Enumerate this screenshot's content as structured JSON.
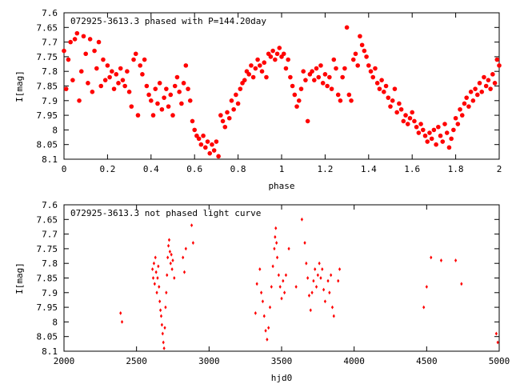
{
  "chart_data": [
    {
      "type": "scatter",
      "title": "072925-3613.3 phased with P=144.20day",
      "xlabel": "phase",
      "ylabel": "I[mag]",
      "xlim": [
        0,
        2
      ],
      "ylim": [
        7.6,
        8.1
      ],
      "y_inverted": true,
      "grid": false,
      "marker": "filled-circle-star",
      "color": "#ff0000",
      "xticks": [
        "0",
        "0.2",
        "0.4",
        "0.6",
        "0.8",
        "1",
        "1.2",
        "1.4",
        "1.6",
        "1.8",
        "2"
      ],
      "yticks": [
        "7.6",
        "7.65",
        "7.7",
        "7.75",
        "7.8",
        "7.85",
        "7.9",
        "7.95",
        "8",
        "8.05",
        "8.1"
      ],
      "points": [
        [
          0.0,
          7.73
        ],
        [
          0.01,
          7.86
        ],
        [
          0.02,
          7.76
        ],
        [
          0.03,
          7.7
        ],
        [
          0.04,
          7.83
        ],
        [
          0.05,
          7.69
        ],
        [
          0.06,
          7.67
        ],
        [
          0.07,
          7.9
        ],
        [
          0.08,
          7.8
        ],
        [
          0.09,
          7.68
        ],
        [
          0.1,
          7.74
        ],
        [
          0.11,
          7.84
        ],
        [
          0.12,
          7.69
        ],
        [
          0.13,
          7.87
        ],
        [
          0.14,
          7.73
        ],
        [
          0.15,
          7.79
        ],
        [
          0.16,
          7.7
        ],
        [
          0.17,
          7.85
        ],
        [
          0.18,
          7.76
        ],
        [
          0.19,
          7.83
        ],
        [
          0.2,
          7.78
        ],
        [
          0.21,
          7.82
        ],
        [
          0.22,
          7.8
        ],
        [
          0.23,
          7.86
        ],
        [
          0.24,
          7.81
        ],
        [
          0.25,
          7.84
        ],
        [
          0.26,
          7.79
        ],
        [
          0.27,
          7.83
        ],
        [
          0.28,
          7.85
        ],
        [
          0.29,
          7.8
        ],
        [
          0.3,
          7.87
        ],
        [
          0.31,
          7.92
        ],
        [
          0.32,
          7.76
        ],
        [
          0.33,
          7.74
        ],
        [
          0.34,
          7.95
        ],
        [
          0.35,
          7.78
        ],
        [
          0.36,
          7.81
        ],
        [
          0.37,
          7.76
        ],
        [
          0.38,
          7.85
        ],
        [
          0.39,
          7.88
        ],
        [
          0.4,
          7.9
        ],
        [
          0.41,
          7.95
        ],
        [
          0.42,
          7.86
        ],
        [
          0.43,
          7.91
        ],
        [
          0.44,
          7.84
        ],
        [
          0.45,
          7.93
        ],
        [
          0.46,
          7.89
        ],
        [
          0.47,
          7.86
        ],
        [
          0.48,
          7.92
        ],
        [
          0.49,
          7.88
        ],
        [
          0.5,
          7.95
        ],
        [
          0.51,
          7.85
        ],
        [
          0.52,
          7.82
        ],
        [
          0.53,
          7.87
        ],
        [
          0.54,
          7.91
        ],
        [
          0.55,
          7.84
        ],
        [
          0.56,
          7.78
        ],
        [
          0.57,
          7.86
        ],
        [
          0.58,
          7.9
        ],
        [
          0.59,
          7.97
        ],
        [
          0.6,
          8.0
        ],
        [
          0.61,
          8.02
        ],
        [
          0.62,
          8.03
        ],
        [
          0.63,
          8.05
        ],
        [
          0.64,
          8.02
        ],
        [
          0.65,
          8.06
        ],
        [
          0.66,
          8.04
        ],
        [
          0.67,
          8.08
        ],
        [
          0.68,
          8.05
        ],
        [
          0.69,
          8.07
        ],
        [
          0.7,
          8.04
        ],
        [
          0.71,
          8.09
        ],
        [
          0.72,
          7.95
        ],
        [
          0.73,
          7.97
        ],
        [
          0.74,
          7.99
        ],
        [
          0.75,
          7.94
        ],
        [
          0.76,
          7.96
        ],
        [
          0.77,
          7.9
        ],
        [
          0.78,
          7.93
        ],
        [
          0.79,
          7.88
        ],
        [
          0.8,
          7.91
        ],
        [
          0.81,
          7.86
        ],
        [
          0.82,
          7.84
        ],
        [
          0.83,
          7.83
        ],
        [
          0.84,
          7.8
        ],
        [
          0.85,
          7.81
        ],
        [
          0.86,
          7.78
        ],
        [
          0.87,
          7.82
        ],
        [
          0.88,
          7.79
        ],
        [
          0.89,
          7.76
        ],
        [
          0.9,
          7.78
        ],
        [
          0.91,
          7.8
        ],
        [
          0.92,
          7.77
        ],
        [
          0.93,
          7.82
        ],
        [
          0.94,
          7.74
        ],
        [
          0.95,
          7.75
        ],
        [
          0.96,
          7.73
        ],
        [
          0.97,
          7.76
        ],
        [
          0.98,
          7.74
        ],
        [
          0.99,
          7.72
        ],
        [
          1.0,
          7.75
        ],
        [
          1.01,
          7.74
        ],
        [
          1.02,
          7.79
        ],
        [
          1.03,
          7.76
        ],
        [
          1.04,
          7.82
        ],
        [
          1.05,
          7.85
        ],
        [
          1.06,
          7.88
        ],
        [
          1.07,
          7.92
        ],
        [
          1.08,
          7.9
        ],
        [
          1.09,
          7.86
        ],
        [
          1.1,
          7.8
        ],
        [
          1.11,
          7.83
        ],
        [
          1.12,
          7.97
        ],
        [
          1.13,
          7.81
        ],
        [
          1.14,
          7.8
        ],
        [
          1.15,
          7.83
        ],
        [
          1.16,
          7.79
        ],
        [
          1.17,
          7.82
        ],
        [
          1.18,
          7.78
        ],
        [
          1.19,
          7.84
        ],
        [
          1.2,
          7.81
        ],
        [
          1.21,
          7.85
        ],
        [
          1.22,
          7.82
        ],
        [
          1.23,
          7.86
        ],
        [
          1.24,
          7.76
        ],
        [
          1.25,
          7.79
        ],
        [
          1.26,
          7.88
        ],
        [
          1.27,
          7.9
        ],
        [
          1.28,
          7.82
        ],
        [
          1.29,
          7.79
        ],
        [
          1.3,
          7.65
        ],
        [
          1.31,
          7.88
        ],
        [
          1.32,
          7.9
        ],
        [
          1.33,
          7.76
        ],
        [
          1.34,
          7.74
        ],
        [
          1.35,
          7.78
        ],
        [
          1.36,
          7.68
        ],
        [
          1.37,
          7.71
        ],
        [
          1.38,
          7.73
        ],
        [
          1.39,
          7.75
        ],
        [
          1.4,
          7.78
        ],
        [
          1.41,
          7.8
        ],
        [
          1.42,
          7.82
        ],
        [
          1.43,
          7.79
        ],
        [
          1.44,
          7.84
        ],
        [
          1.45,
          7.86
        ],
        [
          1.46,
          7.83
        ],
        [
          1.47,
          7.87
        ],
        [
          1.48,
          7.85
        ],
        [
          1.49,
          7.89
        ],
        [
          1.5,
          7.92
        ],
        [
          1.51,
          7.9
        ],
        [
          1.52,
          7.86
        ],
        [
          1.53,
          7.94
        ],
        [
          1.54,
          7.91
        ],
        [
          1.55,
          7.93
        ],
        [
          1.56,
          7.97
        ],
        [
          1.57,
          7.95
        ],
        [
          1.58,
          7.98
        ],
        [
          1.59,
          7.96
        ],
        [
          1.6,
          7.94
        ],
        [
          1.61,
          7.97
        ],
        [
          1.62,
          7.99
        ],
        [
          1.63,
          8.01
        ],
        [
          1.64,
          7.98
        ],
        [
          1.65,
          8.0
        ],
        [
          1.66,
          8.02
        ],
        [
          1.67,
          8.04
        ],
        [
          1.68,
          8.01
        ],
        [
          1.69,
          8.03
        ],
        [
          1.7,
          8.0
        ],
        [
          1.71,
          8.05
        ],
        [
          1.72,
          7.99
        ],
        [
          1.73,
          8.02
        ],
        [
          1.74,
          8.04
        ],
        [
          1.75,
          7.98
        ],
        [
          1.76,
          8.01
        ],
        [
          1.77,
          8.06
        ],
        [
          1.78,
          8.03
        ],
        [
          1.79,
          8.0
        ],
        [
          1.8,
          7.96
        ],
        [
          1.81,
          7.98
        ],
        [
          1.82,
          7.93
        ],
        [
          1.83,
          7.95
        ],
        [
          1.84,
          7.91
        ],
        [
          1.85,
          7.89
        ],
        [
          1.86,
          7.92
        ],
        [
          1.87,
          7.87
        ],
        [
          1.88,
          7.9
        ],
        [
          1.89,
          7.86
        ],
        [
          1.9,
          7.88
        ],
        [
          1.91,
          7.84
        ],
        [
          1.92,
          7.87
        ],
        [
          1.93,
          7.82
        ],
        [
          1.94,
          7.85
        ],
        [
          1.95,
          7.83
        ],
        [
          1.96,
          7.86
        ],
        [
          1.97,
          7.81
        ],
        [
          1.98,
          7.84
        ],
        [
          1.99,
          7.76
        ],
        [
          2.0,
          7.78
        ]
      ]
    },
    {
      "type": "scatter",
      "title": "072925-3613.3 not phased light curve",
      "xlabel": "hjd0",
      "ylabel": "I[mag]",
      "xlim": [
        2000,
        5000
      ],
      "ylim": [
        7.6,
        8.1
      ],
      "y_inverted": true,
      "grid": false,
      "marker": "small-diamond",
      "color": "#ff0000",
      "xticks": [
        "2000",
        "2500",
        "3000",
        "3500",
        "4000",
        "4500",
        "5000"
      ],
      "yticks": [
        "7.6",
        "7.65",
        "7.7",
        "7.75",
        "7.8",
        "7.85",
        "7.9",
        "7.95",
        "8",
        "8.05",
        "8.1"
      ],
      "points": [
        [
          2390,
          7.97
        ],
        [
          2400,
          8.0
        ],
        [
          2610,
          7.82
        ],
        [
          2615,
          7.85
        ],
        [
          2620,
          7.8
        ],
        [
          2625,
          7.87
        ],
        [
          2630,
          7.78
        ],
        [
          2635,
          7.83
        ],
        [
          2640,
          7.9
        ],
        [
          2645,
          7.85
        ],
        [
          2650,
          7.81
        ],
        [
          2655,
          7.88
        ],
        [
          2660,
          7.93
        ],
        [
          2665,
          7.96
        ],
        [
          2670,
          7.98
        ],
        [
          2675,
          8.01
        ],
        [
          2680,
          8.04
        ],
        [
          2685,
          8.07
        ],
        [
          2690,
          8.09
        ],
        [
          2695,
          8.02
        ],
        [
          2700,
          7.95
        ],
        [
          2705,
          7.9
        ],
        [
          2710,
          7.84
        ],
        [
          2715,
          7.78
        ],
        [
          2720,
          7.74
        ],
        [
          2725,
          7.72
        ],
        [
          2730,
          7.76
        ],
        [
          2735,
          7.8
        ],
        [
          2740,
          7.77
        ],
        [
          2745,
          7.82
        ],
        [
          2750,
          7.79
        ],
        [
          2760,
          7.85
        ],
        [
          2820,
          7.78
        ],
        [
          2830,
          7.83
        ],
        [
          2840,
          7.75
        ],
        [
          2880,
          7.67
        ],
        [
          2890,
          7.73
        ],
        [
          3320,
          7.97
        ],
        [
          3330,
          7.87
        ],
        [
          3350,
          7.82
        ],
        [
          3360,
          7.9
        ],
        [
          3370,
          7.93
        ],
        [
          3380,
          7.98
        ],
        [
          3390,
          8.03
        ],
        [
          3400,
          8.06
        ],
        [
          3410,
          8.02
        ],
        [
          3420,
          7.95
        ],
        [
          3430,
          7.88
        ],
        [
          3440,
          7.81
        ],
        [
          3450,
          7.75
        ],
        [
          3455,
          7.71
        ],
        [
          3460,
          7.68
        ],
        [
          3465,
          7.73
        ],
        [
          3470,
          7.78
        ],
        [
          3480,
          7.84
        ],
        [
          3490,
          7.88
        ],
        [
          3500,
          7.92
        ],
        [
          3510,
          7.86
        ],
        [
          3520,
          7.9
        ],
        [
          3530,
          7.84
        ],
        [
          3550,
          7.75
        ],
        [
          3600,
          7.88
        ],
        [
          3640,
          7.65
        ],
        [
          3660,
          7.73
        ],
        [
          3670,
          7.8
        ],
        [
          3680,
          7.85
        ],
        [
          3690,
          7.91
        ],
        [
          3700,
          7.96
        ],
        [
          3710,
          7.9
        ],
        [
          3720,
          7.86
        ],
        [
          3730,
          7.82
        ],
        [
          3740,
          7.88
        ],
        [
          3750,
          7.84
        ],
        [
          3760,
          7.8
        ],
        [
          3770,
          7.85
        ],
        [
          3780,
          7.82
        ],
        [
          3790,
          7.89
        ],
        [
          3800,
          7.93
        ],
        [
          3820,
          7.86
        ],
        [
          3830,
          7.9
        ],
        [
          3840,
          7.84
        ],
        [
          3850,
          7.95
        ],
        [
          3860,
          7.98
        ],
        [
          3890,
          7.86
        ],
        [
          3900,
          7.82
        ],
        [
          4480,
          7.95
        ],
        [
          4500,
          7.88
        ],
        [
          4530,
          7.78
        ],
        [
          4600,
          7.79
        ],
        [
          4700,
          7.79
        ],
        [
          4740,
          7.87
        ],
        [
          4980,
          8.04
        ],
        [
          4990,
          8.07
        ]
      ]
    }
  ]
}
